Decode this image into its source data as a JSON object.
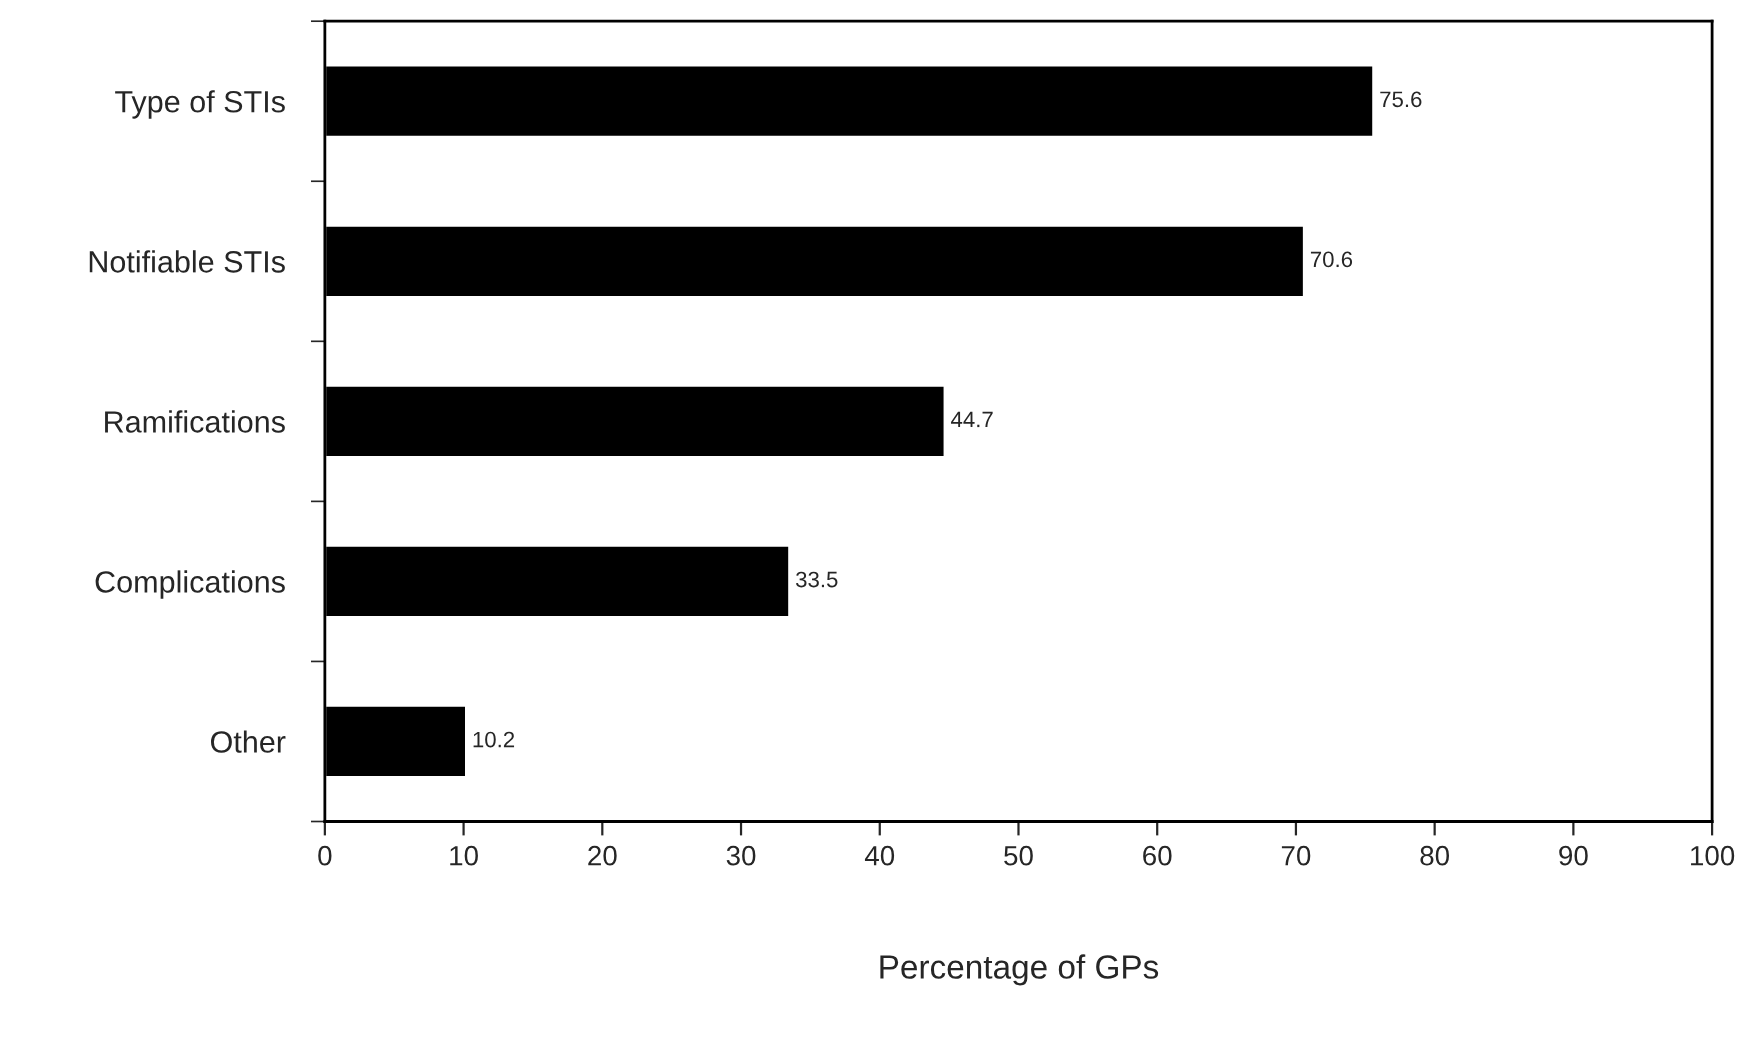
{
  "chart_data": {
    "type": "bar",
    "orientation": "horizontal",
    "xlabel": "Percentage of GPs",
    "categories": [
      "Type of STIs",
      "Notifiable STIs",
      "Ramifications",
      "Complications",
      "Other"
    ],
    "values": [
      75.6,
      70.6,
      44.7,
      33.5,
      10.2
    ],
    "color": "#000000",
    "xlim": [
      0,
      100
    ],
    "xticks": [
      0,
      10,
      20,
      30,
      40,
      50,
      60,
      70,
      80,
      90,
      100
    ],
    "data_labels": true,
    "grid": false,
    "legend": false
  }
}
